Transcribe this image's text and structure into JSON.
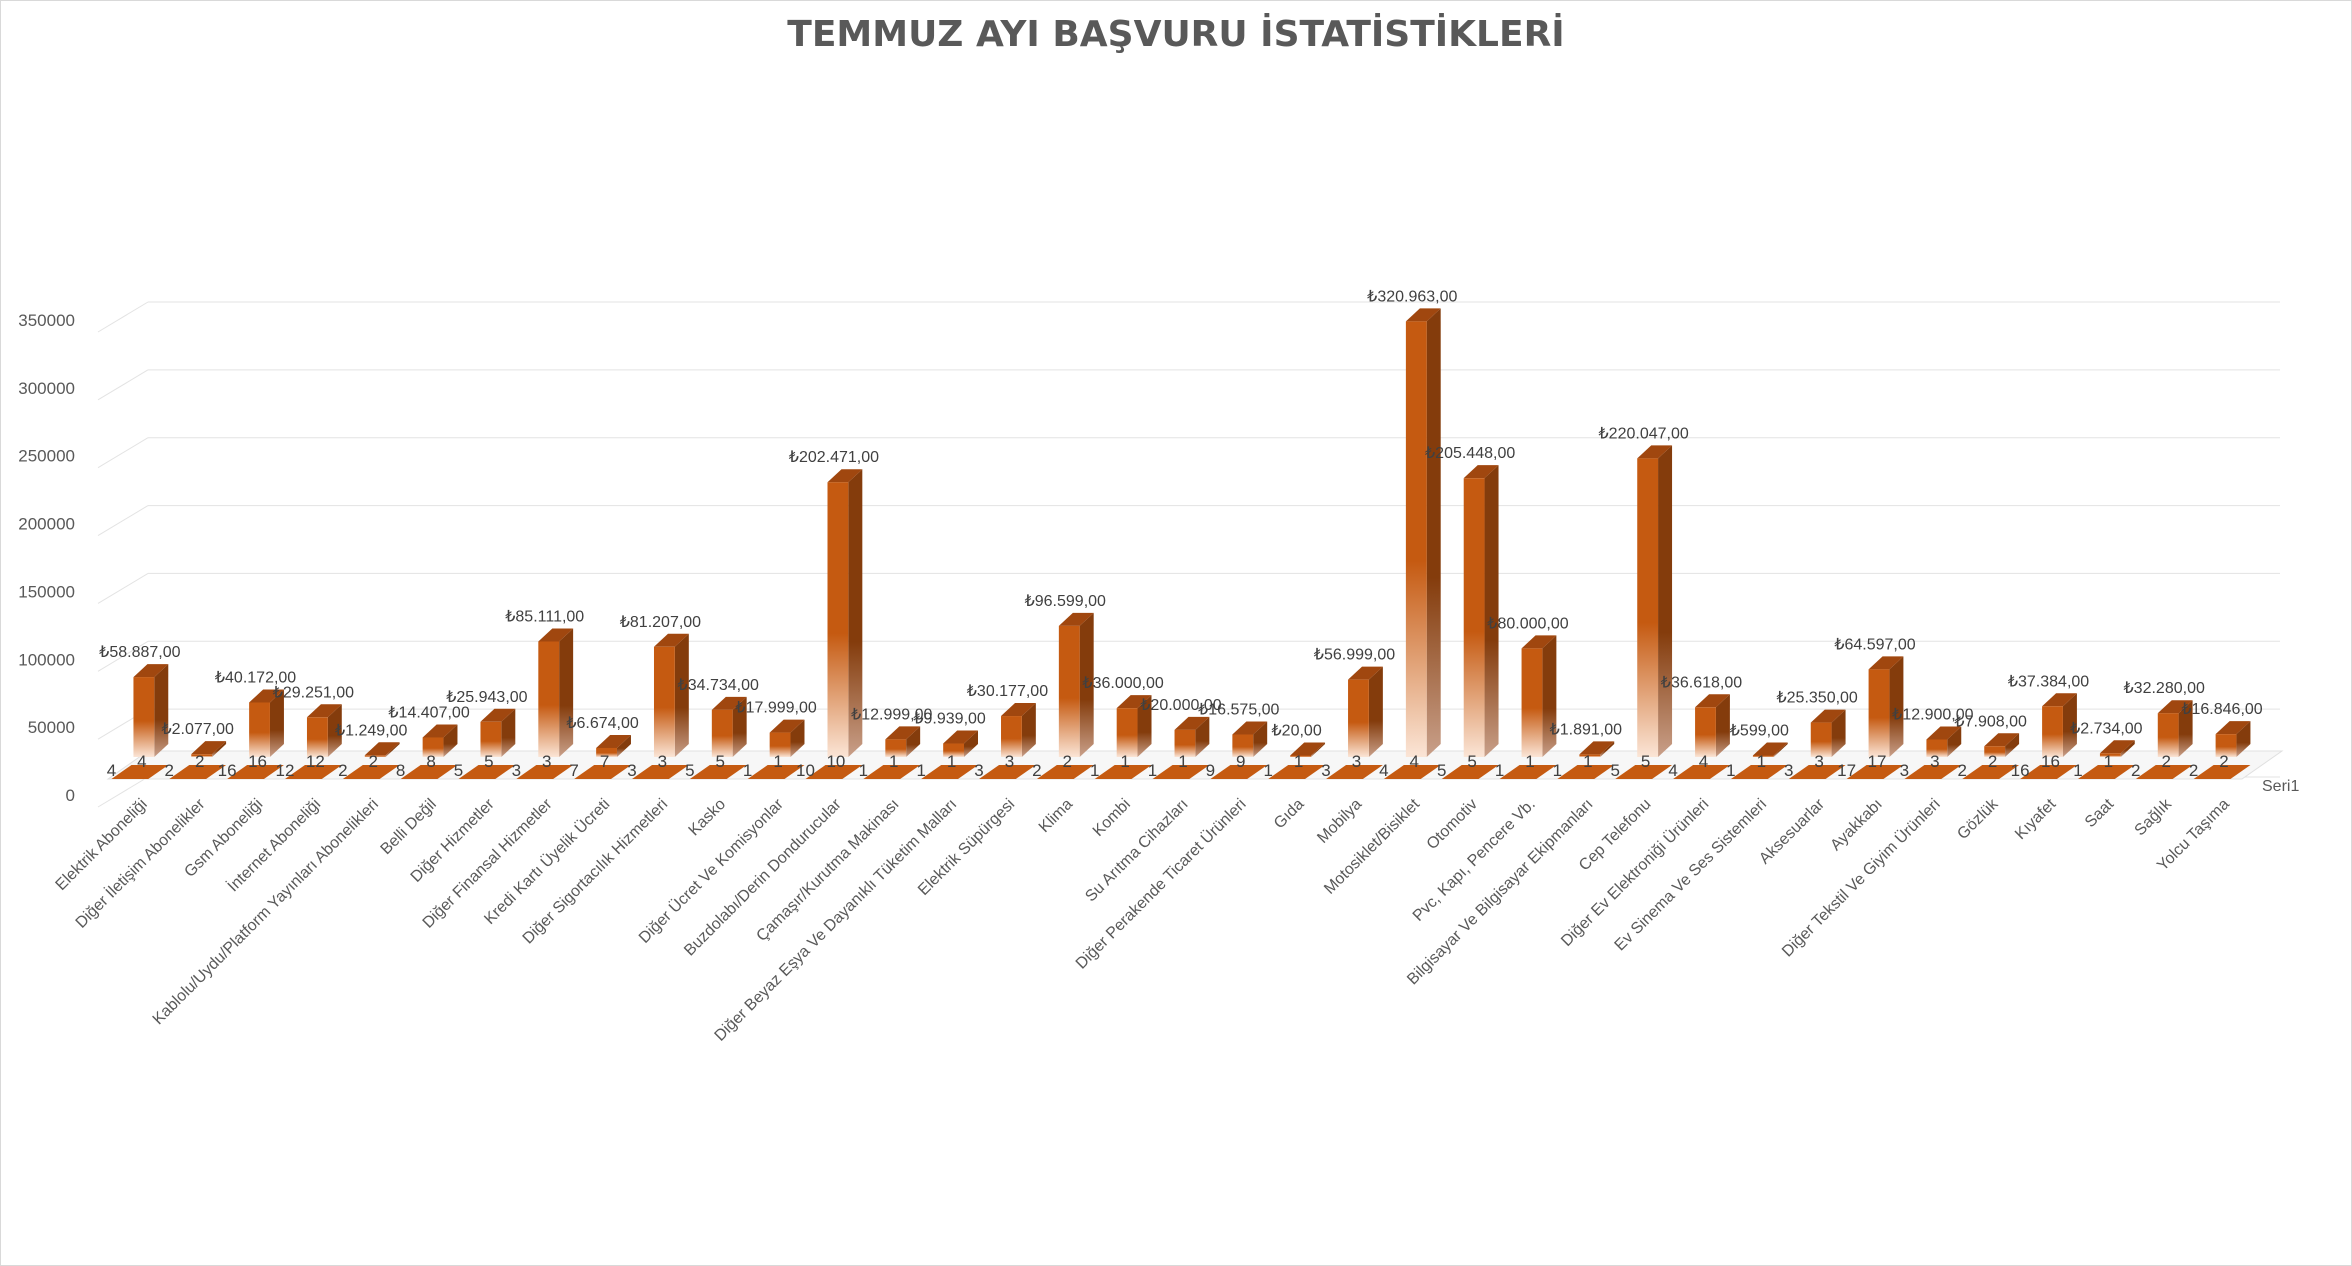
{
  "chart_data": {
    "type": "bar",
    "title": "TEMMUZ AYI BAŞVURU İSTATİSTİKLERİ",
    "series_label": "Seri1",
    "ylim": [
      0,
      350000
    ],
    "yticks": [
      "0",
      "50000",
      "100000",
      "150000",
      "200000",
      "250000",
      "300000",
      "350000"
    ],
    "ytick_values": [
      0,
      50000,
      100000,
      150000,
      200000,
      250000,
      300000,
      350000
    ],
    "colors": {
      "bar": "#c55a11",
      "bar_light": "#fbe5d6",
      "bar_side": "#843c0c",
      "bar_top": "#a0470f"
    },
    "categories": [
      "Elektrik Aboneliği",
      "Diğer İletişim Abonelikler",
      "Gsm Aboneliği",
      "İnternet Aboneliği",
      "Kablolu/Uydu/Platform Yayınları Abonelikleri",
      "Belli Değil",
      "Diğer Hizmetler",
      "Diğer Finansal Hizmetler",
      "Kredi Kartı Üyelik Ücreti",
      "Diğer Sigortacılık Hizmetleri",
      "Kasko",
      "Diğer Ücret Ve Komisyonlar",
      "Buzdolabı/Derin Dondurucular",
      "Çamaşır/Kurutma Makinası",
      "Diğer Beyaz Eşya Ve Dayanıklı Tüketim Malları",
      "Elektrik Süpürgesi",
      "Klima",
      "Kombi",
      "Su Arıtma Cihazları",
      "Diğer Perakende Ticaret Ürünleri",
      "Gıda",
      "Mobilya",
      "Motosiklet/Bisiklet",
      "Otomotiv",
      "Pvc, Kapı, Pencere Vb.",
      "Bilgisayar Ve Bilgisayar Ekipmanları",
      "Cep Telefonu",
      "Diğer Ev Elektroniği Ürünleri",
      "Ev Sinema Ve Ses Sistemleri",
      "Aksesuarlar",
      "Ayakkabı",
      "Diğer Tekstil Ve Giyim Ürünleri",
      "Gözlük",
      "Kıyafet",
      "Saat",
      "Sağlık",
      "Yolcu Taşıma"
    ],
    "values": [
      58887,
      2077,
      40172,
      29251,
      1249,
      14407,
      25943,
      85111,
      6674,
      81207,
      34734,
      17999,
      202471,
      12999,
      9939,
      30177,
      96599,
      36000,
      20000,
      16575,
      20,
      56999,
      320963,
      205448,
      80000,
      1891,
      220047,
      36618,
      599,
      25350,
      64597,
      12900,
      7908,
      37384,
      2734,
      32280,
      16846
    ],
    "value_labels": [
      "₺58.887,00",
      "₺2.077,00",
      "₺40.172,00",
      "₺29.251,00",
      "₺1.249,00",
      "₺14.407,00",
      "₺25.943,00",
      "₺85.111,00",
      "₺6.674,00",
      "₺81.207,00",
      "₺34.734,00",
      "₺17.999,00",
      "₺202.471,00",
      "₺12.999,00",
      "₺9.939,00",
      "₺30.177,00",
      "₺96.599,00",
      "₺36.000,00",
      "₺20.000,00",
      "₺16.575,00",
      "₺20,00",
      "₺56.999,00",
      "₺320.963,00",
      "₺205.448,00",
      "₺80.000,00",
      "₺1.891,00",
      "₺220.047,00",
      "₺36.618,00",
      "₺599,00",
      "₺25.350,00",
      "₺64.597,00",
      "₺12.900,00",
      "₺7.908,00",
      "₺37.384,00",
      "₺2.734,00",
      "₺32.280,00",
      "₺16.846,00"
    ],
    "counts": [
      4,
      2,
      16,
      12,
      2,
      8,
      5,
      3,
      7,
      3,
      5,
      1,
      10,
      1,
      1,
      3,
      2,
      1,
      1,
      9,
      1,
      3,
      4,
      5,
      1,
      1,
      5,
      4,
      1,
      3,
      17,
      3,
      2,
      16,
      1,
      2,
      2
    ],
    "grid": true,
    "legend": "none"
  }
}
